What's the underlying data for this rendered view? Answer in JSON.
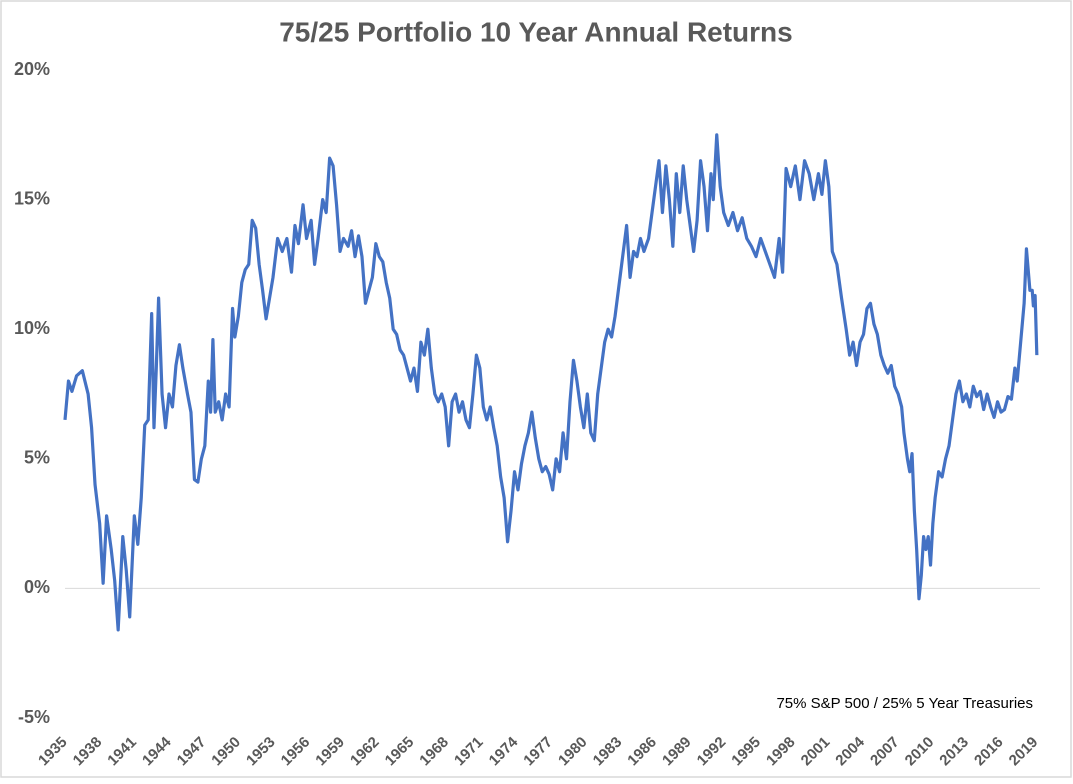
{
  "chart_data": {
    "type": "line",
    "title": "75/25 Portfolio 10 Year Annual Returns",
    "annotation": "75% S&P 500 / 25% 5 Year Treasuries",
    "color": "#4472c4",
    "x": [
      1935.0,
      1935.3,
      1935.6,
      1936.0,
      1936.5,
      1937.0,
      1937.3,
      1937.6,
      1938.0,
      1938.3,
      1938.6,
      1939.0,
      1939.3,
      1939.6,
      1940.0,
      1940.3,
      1940.6,
      1941.0,
      1941.3,
      1941.6,
      1941.9,
      1942.2,
      1942.5,
      1942.7,
      1942.9,
      1943.1,
      1943.4,
      1943.7,
      1944.0,
      1944.3,
      1944.6,
      1944.9,
      1945.2,
      1945.6,
      1945.9,
      1946.2,
      1946.5,
      1946.8,
      1947.1,
      1947.4,
      1947.6,
      1947.8,
      1948.0,
      1948.3,
      1948.6,
      1948.9,
      1949.2,
      1949.5,
      1949.7,
      1950.0,
      1950.3,
      1950.6,
      1950.9,
      1951.2,
      1951.5,
      1951.8,
      1952.1,
      1952.4,
      1952.7,
      1953.0,
      1953.4,
      1953.8,
      1954.2,
      1954.6,
      1954.9,
      1955.2,
      1955.6,
      1955.9,
      1956.3,
      1956.6,
      1956.9,
      1957.3,
      1957.6,
      1957.9,
      1958.2,
      1958.5,
      1958.8,
      1959.1,
      1959.5,
      1959.8,
      1960.1,
      1960.4,
      1960.7,
      1961.0,
      1961.3,
      1961.6,
      1961.9,
      1962.2,
      1962.5,
      1962.8,
      1963.1,
      1963.4,
      1963.7,
      1964.0,
      1964.3,
      1964.6,
      1964.9,
      1965.2,
      1965.5,
      1965.8,
      1966.1,
      1966.4,
      1966.7,
      1967.0,
      1967.3,
      1967.6,
      1967.9,
      1968.2,
      1968.5,
      1968.8,
      1969.1,
      1969.4,
      1969.7,
      1970.0,
      1970.3,
      1970.6,
      1970.9,
      1971.2,
      1971.5,
      1971.8,
      1972.1,
      1972.4,
      1972.7,
      1973.0,
      1973.3,
      1973.6,
      1973.9,
      1974.2,
      1974.5,
      1974.8,
      1975.1,
      1975.4,
      1975.7,
      1976.0,
      1976.3,
      1976.6,
      1976.9,
      1977.2,
      1977.5,
      1977.8,
      1978.1,
      1978.4,
      1978.7,
      1979.0,
      1979.3,
      1979.6,
      1979.9,
      1980.2,
      1980.5,
      1980.8,
      1981.1,
      1981.4,
      1981.7,
      1982.0,
      1982.3,
      1982.6,
      1983.6,
      1983.9,
      1984.2,
      1984.5,
      1984.8,
      1985.1,
      1985.5,
      1986.4,
      1986.7,
      1987.0,
      1987.3,
      1987.6,
      1987.9,
      1988.2,
      1988.5,
      1988.8,
      1989.1,
      1989.4,
      1989.7,
      1990.0,
      1990.3,
      1990.6,
      1990.9,
      1991.1,
      1991.4,
      1991.7,
      1992.0,
      1992.4,
      1992.8,
      1993.2,
      1993.6,
      1994.0,
      1994.4,
      1994.8,
      1995.2,
      1995.6,
      1996.0,
      1996.4,
      1996.8,
      1997.1,
      1997.4,
      1997.8,
      1998.2,
      1998.6,
      1999.0,
      1999.4,
      1999.8,
      2000.2,
      2000.5,
      2000.8,
      2001.1,
      2001.4,
      2001.8,
      2002.2,
      2002.6,
      2002.9,
      2003.2,
      2003.5,
      2003.8,
      2004.1,
      2004.4,
      2004.7,
      2005.0,
      2005.3,
      2005.6,
      2005.9,
      2006.2,
      2006.5,
      2006.8,
      2007.1,
      2007.4,
      2007.6,
      2007.9,
      2008.1,
      2008.3,
      2008.5,
      2008.7,
      2008.9,
      2009.1,
      2009.3,
      2009.5,
      2009.7,
      2009.9,
      2010.1,
      2010.3,
      2010.6,
      2010.9,
      2011.2,
      2011.5,
      2011.8,
      2012.1,
      2012.4,
      2012.7,
      2013.0,
      2013.3,
      2013.6,
      2013.9,
      2014.2,
      2014.5,
      2014.8,
      2015.1,
      2015.4,
      2015.7,
      2016.0,
      2016.3,
      2016.6,
      2016.9,
      2017.2,
      2017.4,
      2017.7,
      2018.0,
      2018.2,
      2018.5,
      2018.7,
      2018.8,
      2018.95,
      2019.1
    ],
    "values": [
      6.5,
      8.0,
      7.6,
      8.2,
      8.4,
      7.5,
      6.2,
      4.0,
      2.5,
      0.2,
      2.8,
      1.5,
      0.3,
      -1.6,
      2.0,
      0.7,
      -1.1,
      2.8,
      1.7,
      3.5,
      6.3,
      6.5,
      10.6,
      6.2,
      8.5,
      11.2,
      7.5,
      6.2,
      7.5,
      7.0,
      8.6,
      9.4,
      8.5,
      7.5,
      6.8,
      4.2,
      4.1,
      5.0,
      5.5,
      8.0,
      6.8,
      9.6,
      6.8,
      7.2,
      6.5,
      7.5,
      7.0,
      10.8,
      9.7,
      10.5,
      11.8,
      12.3,
      12.5,
      14.2,
      13.9,
      12.5,
      11.5,
      10.4,
      11.2,
      12.0,
      13.5,
      13.0,
      13.5,
      12.2,
      14.0,
      13.3,
      14.8,
      13.5,
      14.2,
      12.5,
      13.5,
      15.0,
      14.5,
      16.6,
      16.3,
      14.8,
      13.0,
      13.5,
      13.2,
      13.8,
      12.8,
      13.6,
      12.8,
      11.0,
      11.5,
      12.0,
      13.3,
      12.8,
      12.6,
      11.8,
      11.2,
      10.0,
      9.8,
      9.2,
      9.0,
      8.5,
      8.0,
      8.5,
      7.6,
      9.5,
      9.0,
      10.0,
      8.5,
      7.5,
      7.2,
      7.5,
      7.0,
      5.5,
      7.2,
      7.5,
      6.8,
      7.2,
      6.5,
      6.2,
      7.5,
      9.0,
      8.5,
      7.0,
      6.5,
      7.0,
      6.2,
      5.5,
      4.3,
      3.5,
      1.8,
      3.0,
      4.5,
      3.8,
      4.8,
      5.5,
      6.0,
      6.8,
      5.8,
      5.0,
      4.5,
      4.7,
      4.4,
      3.8,
      5.0,
      4.5,
      6.0,
      5.0,
      7.2,
      8.8,
      8.0,
      7.0,
      6.2,
      7.5,
      6.0,
      5.7,
      7.5,
      8.5,
      9.5,
      10.0,
      9.7,
      10.5,
      14.0,
      12.0,
      13.0,
      12.8,
      13.5,
      13.0,
      13.5,
      16.5,
      14.5,
      16.3,
      15.0,
      13.2,
      16.0,
      14.5,
      16.3,
      15.0,
      14.0,
      13.0,
      14.2,
      16.5,
      15.5,
      13.8,
      16.0,
      15.0,
      17.5,
      15.5,
      14.5,
      14.0,
      14.5,
      13.8,
      14.3,
      13.5,
      13.2,
      12.8,
      13.5,
      13.0,
      12.5,
      12.0,
      13.5,
      12.2,
      16.2,
      15.5,
      16.3,
      15.0,
      16.5,
      16.0,
      15.0,
      16.0,
      15.2,
      16.5,
      15.5,
      13.0,
      12.5,
      11.2,
      10.0,
      9.0,
      9.5,
      8.6,
      9.5,
      9.8,
      10.8,
      11.0,
      10.2,
      9.8,
      9.0,
      8.6,
      8.3,
      8.6,
      7.8,
      7.5,
      7.0,
      6.0,
      5.0,
      4.5,
      5.2,
      3.0,
      1.5,
      -0.4,
      0.5,
      2.0,
      1.5,
      2.0,
      0.9,
      2.5,
      3.5,
      4.5,
      4.3,
      5.0,
      5.5,
      6.5,
      7.5,
      8.0,
      7.2,
      7.5,
      7.0,
      7.8,
      7.4,
      7.6,
      6.9,
      7.5,
      7.0,
      6.6,
      7.2,
      6.8,
      6.9,
      7.4,
      7.3,
      8.5,
      8.0,
      9.5,
      11.0,
      13.1,
      11.5,
      11.5,
      10.9,
      11.3,
      9.0
    ],
    "xlim": [
      1935,
      2019.2
    ],
    "xticks": [
      1935,
      1938,
      1941,
      1944,
      1947,
      1950,
      1953,
      1956,
      1959,
      1962,
      1965,
      1968,
      1971,
      1974,
      1977,
      1980,
      1983,
      1986,
      1989,
      1992,
      1995,
      1998,
      2001,
      2004,
      2007,
      2010,
      2013,
      2016,
      2019
    ],
    "ylim": [
      -5,
      20
    ],
    "yticks": [
      {
        "value": -5,
        "label": "-5%"
      },
      {
        "value": 0,
        "label": "0%"
      },
      {
        "value": 5,
        "label": "5%"
      },
      {
        "value": 10,
        "label": "10%"
      },
      {
        "value": 15,
        "label": "15%"
      },
      {
        "value": 20,
        "label": "20%"
      }
    ]
  }
}
